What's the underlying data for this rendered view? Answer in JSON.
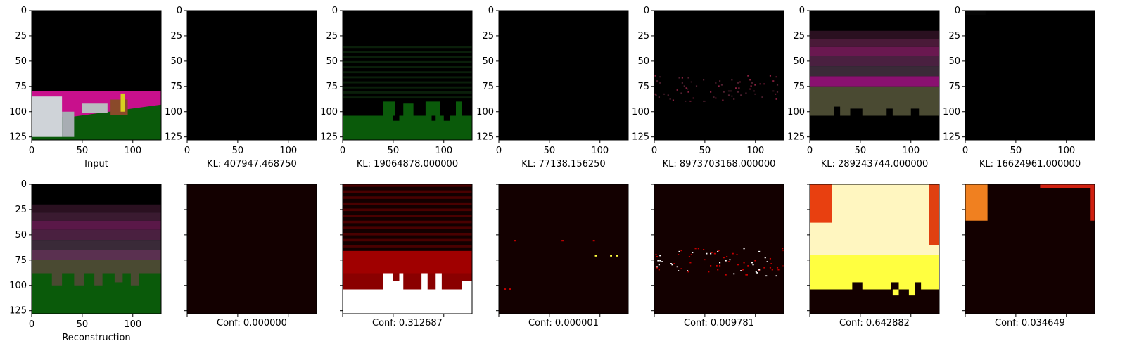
{
  "chart_data": {
    "type": "heatmap",
    "axis_ticks": [
      "0",
      "25",
      "50",
      "75",
      "100",
      "125"
    ],
    "x_ticks": [
      "0",
      "50",
      "100"
    ],
    "xlim": [
      0,
      128
    ],
    "ylim": [
      128,
      0
    ],
    "rows": [
      {
        "panels": [
          {
            "caption": "Input",
            "kind": "input"
          },
          {
            "caption": "KL: 407947.468750",
            "kind": "latent_black"
          },
          {
            "caption": "KL: 19064878.000000",
            "kind": "latent_green"
          },
          {
            "caption": "KL: 77138.156250",
            "kind": "latent_black"
          },
          {
            "caption": "KL: 8973703168.000000",
            "kind": "latent_dots"
          },
          {
            "caption": "KL: 289243744.000000",
            "kind": "latent_stripes"
          },
          {
            "caption": "KL: 16624961.000000",
            "kind": "latent_black"
          }
        ]
      },
      {
        "panels": [
          {
            "caption": "Reconstruction",
            "kind": "recon"
          },
          {
            "caption": "Conf: 0.000000",
            "kind": "conf",
            "value": 0.0
          },
          {
            "caption": "Conf: 0.312687",
            "kind": "conf",
            "value": 0.312687
          },
          {
            "caption": "Conf: 0.000001",
            "kind": "conf",
            "value": 1e-06
          },
          {
            "caption": "Conf: 0.009781",
            "kind": "conf",
            "value": 0.009781
          },
          {
            "caption": "Conf: 0.642882",
            "kind": "conf",
            "value": 0.642882
          },
          {
            "caption": "Conf: 0.034649",
            "kind": "conf",
            "value": 0.034649
          }
        ]
      }
    ],
    "colors": {
      "black": "#000000",
      "dark_red": "#130000",
      "red": "#c80000",
      "yellow": "#ffff40",
      "white": "#ffffff",
      "green": "#0a5a0a",
      "magenta": "#c8108c",
      "olive": "#4a4a32"
    }
  }
}
